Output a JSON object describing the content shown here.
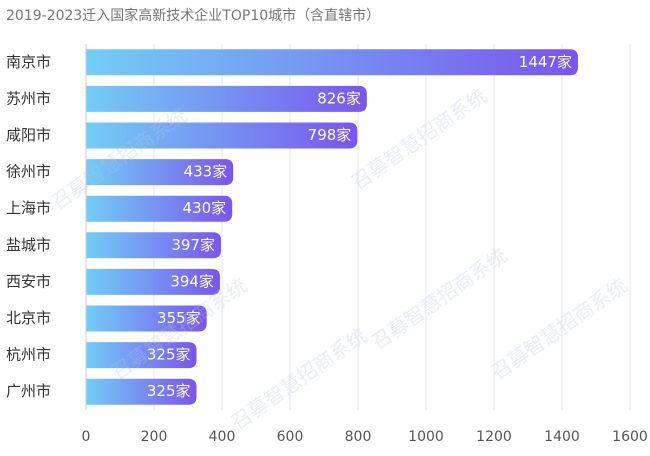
{
  "chart_data": {
    "type": "hbar",
    "title": "2019-2023迁入国家高新技术企业TOP10城市（含直辖市）",
    "categories": [
      "南京市",
      "苏州市",
      "咸阳市",
      "徐州市",
      "上海市",
      "盐城市",
      "西安市",
      "北京市",
      "杭州市",
      "广州市"
    ],
    "values": [
      1447,
      826,
      798,
      433,
      430,
      397,
      394,
      355,
      325,
      325
    ],
    "value_labels": [
      "1447家",
      "826家",
      "798家",
      "433家",
      "430家",
      "397家",
      "394家",
      "355家",
      "325家",
      "325家"
    ],
    "colors": [
      "#72cdf6",
      "#7a55ee"
    ],
    "xlim": [
      0,
      1600
    ],
    "xticks": [
      0,
      200,
      400,
      600,
      800,
      1000,
      1200,
      1400,
      1600
    ],
    "grid": true,
    "watermark": "召募智慧招商系统"
  }
}
